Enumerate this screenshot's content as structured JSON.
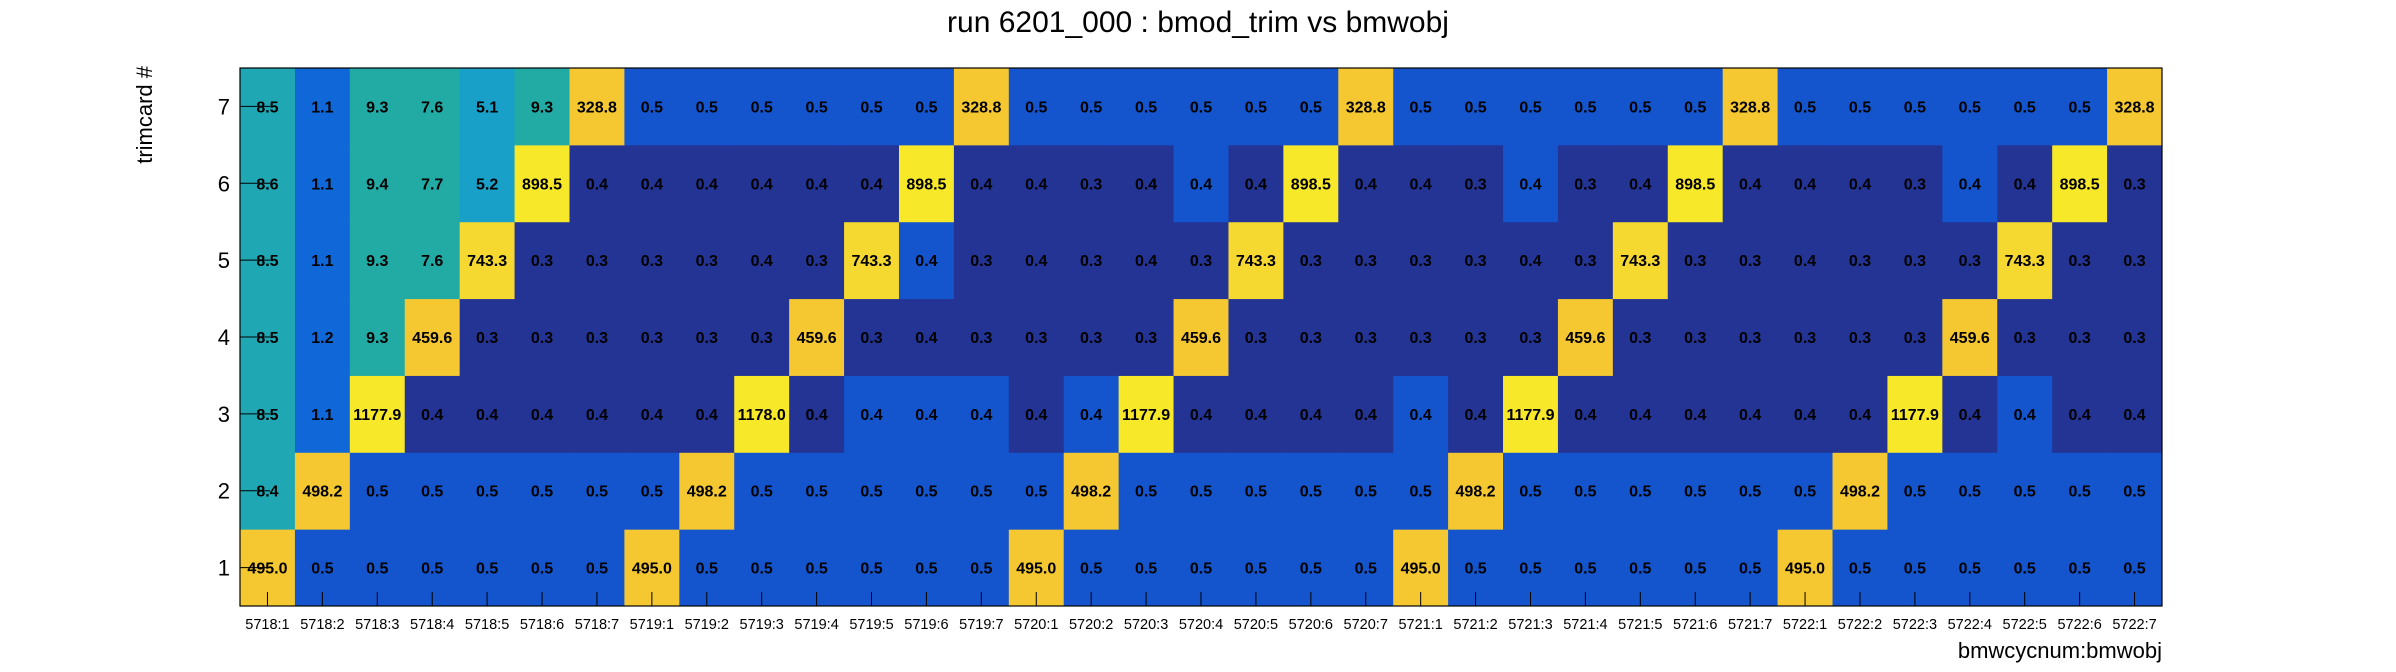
{
  "chart_data": {
    "type": "heatmap",
    "title": "run 6201_000 : bmod_trim vs bmwobj",
    "xlabel": "bmwcycnum:bmwobj",
    "ylabel": "trimcard #",
    "x": [
      "5718:1",
      "5718:2",
      "5718:3",
      "5718:4",
      "5718:5",
      "5718:6",
      "5718:7",
      "5719:1",
      "5719:2",
      "5719:3",
      "5719:4",
      "5719:5",
      "5719:6",
      "5719:7",
      "5720:1",
      "5720:2",
      "5720:3",
      "5720:4",
      "5720:5",
      "5720:6",
      "5720:7",
      "5721:1",
      "5721:2",
      "5721:3",
      "5721:4",
      "5721:5",
      "5721:6",
      "5721:7",
      "5722:1",
      "5722:2",
      "5722:3",
      "5722:4",
      "5722:5",
      "5722:6",
      "5722:7"
    ],
    "y": [
      "1",
      "2",
      "3",
      "4",
      "5",
      "6",
      "7"
    ],
    "values": [
      [
        "495.0",
        "0.5",
        "0.5",
        "0.5",
        "0.5",
        "0.5",
        "0.5",
        "495.0",
        "0.5",
        "0.5",
        "0.5",
        "0.5",
        "0.5",
        "0.5",
        "495.0",
        "0.5",
        "0.5",
        "0.5",
        "0.5",
        "0.5",
        "0.5",
        "495.0",
        "0.5",
        "0.5",
        "0.5",
        "0.5",
        "0.5",
        "0.5",
        "495.0",
        "0.5",
        "0.5",
        "0.5",
        "0.5",
        "0.5",
        "0.5"
      ],
      [
        "8.4",
        "498.2",
        "0.5",
        "0.5",
        "0.5",
        "0.5",
        "0.5",
        "0.5",
        "498.2",
        "0.5",
        "0.5",
        "0.5",
        "0.5",
        "0.5",
        "0.5",
        "498.2",
        "0.5",
        "0.5",
        "0.5",
        "0.5",
        "0.5",
        "0.5",
        "498.2",
        "0.5",
        "0.5",
        "0.5",
        "0.5",
        "0.5",
        "0.5",
        "498.2",
        "0.5",
        "0.5",
        "0.5",
        "0.5",
        "0.5"
      ],
      [
        "8.5",
        "1.1",
        "1177.9",
        "0.4",
        "0.4",
        "0.4",
        "0.4",
        "0.4",
        "0.4",
        "1178.0",
        "0.4",
        "0.4",
        "0.4",
        "0.4",
        "0.4",
        "0.4",
        "1177.9",
        "0.4",
        "0.4",
        "0.4",
        "0.4",
        "0.4",
        "0.4",
        "1177.9",
        "0.4",
        "0.4",
        "0.4",
        "0.4",
        "0.4",
        "0.4",
        "1177.9",
        "0.4",
        "0.4",
        "0.4",
        "0.4"
      ],
      [
        "8.5",
        "1.2",
        "9.3",
        "459.6",
        "0.3",
        "0.3",
        "0.3",
        "0.3",
        "0.3",
        "0.3",
        "459.6",
        "0.3",
        "0.4",
        "0.3",
        "0.3",
        "0.3",
        "0.3",
        "459.6",
        "0.3",
        "0.3",
        "0.3",
        "0.3",
        "0.3",
        "0.3",
        "459.6",
        "0.3",
        "0.3",
        "0.3",
        "0.3",
        "0.3",
        "0.3",
        "459.6",
        "0.3",
        "0.3",
        "0.3"
      ],
      [
        "8.5",
        "1.1",
        "9.3",
        "7.6",
        "743.3",
        "0.3",
        "0.3",
        "0.3",
        "0.3",
        "0.4",
        "0.3",
        "743.3",
        "0.4",
        "0.3",
        "0.4",
        "0.3",
        "0.4",
        "0.3",
        "743.3",
        "0.3",
        "0.3",
        "0.3",
        "0.3",
        "0.4",
        "0.3",
        "743.3",
        "0.3",
        "0.3",
        "0.4",
        "0.3",
        "0.3",
        "0.3",
        "743.3",
        "0.3",
        "0.3"
      ],
      [
        "8.6",
        "1.1",
        "9.4",
        "7.7",
        "5.2",
        "898.5",
        "0.4",
        "0.4",
        "0.4",
        "0.4",
        "0.4",
        "0.4",
        "898.5",
        "0.4",
        "0.4",
        "0.3",
        "0.4",
        "0.4",
        "0.4",
        "898.5",
        "0.4",
        "0.4",
        "0.3",
        "0.4",
        "0.3",
        "0.4",
        "898.5",
        "0.4",
        "0.4",
        "0.4",
        "0.3",
        "0.4",
        "0.4",
        "898.5",
        "0.3"
      ],
      [
        "8.5",
        "1.1",
        "9.3",
        "7.6",
        "5.1",
        "9.3",
        "328.8",
        "0.5",
        "0.5",
        "0.5",
        "0.5",
        "0.5",
        "0.5",
        "328.8",
        "0.5",
        "0.5",
        "0.5",
        "0.5",
        "0.5",
        "0.5",
        "328.8",
        "0.5",
        "0.5",
        "0.5",
        "0.5",
        "0.5",
        "0.5",
        "328.8",
        "0.5",
        "0.5",
        "0.5",
        "0.5",
        "0.5",
        "0.5",
        "328.8"
      ]
    ],
    "cell_colors": [
      [
        "#f5c832",
        "#1454cc",
        "#1454cc",
        "#1454cc",
        "#1454cc",
        "#1454cc",
        "#1454cc",
        "#f5c832",
        "#1454cc",
        "#1454cc",
        "#1454cc",
        "#1454cc",
        "#1454cc",
        "#1454cc",
        "#f5c832",
        "#1454cc",
        "#1454cc",
        "#1454cc",
        "#1454cc",
        "#1454cc",
        "#1454cc",
        "#f5c832",
        "#1454cc",
        "#1454cc",
        "#1454cc",
        "#1454cc",
        "#1454cc",
        "#1454cc",
        "#f5c832",
        "#1454cc",
        "#1454cc",
        "#1454cc",
        "#1454cc",
        "#1454cc",
        "#1454cc"
      ],
      [
        "#1fa8b4",
        "#f5c832",
        "#1454cc",
        "#1454cc",
        "#1454cc",
        "#1454cc",
        "#1454cc",
        "#1454cc",
        "#f5c832",
        "#1454cc",
        "#1454cc",
        "#1454cc",
        "#1454cc",
        "#1454cc",
        "#1454cc",
        "#f5c832",
        "#1454cc",
        "#1454cc",
        "#1454cc",
        "#1454cc",
        "#1454cc",
        "#1454cc",
        "#f5c832",
        "#1454cc",
        "#1454cc",
        "#1454cc",
        "#1454cc",
        "#1454cc",
        "#1454cc",
        "#f5c832",
        "#1454cc",
        "#1454cc",
        "#1454cc",
        "#1454cc",
        "#1454cc"
      ],
      [
        "#1fa8b4",
        "#1068d8",
        "#f8e82a",
        "#243494",
        "#243494",
        "#243494",
        "#243494",
        "#243494",
        "#243494",
        "#f8e82a",
        "#243494",
        "#1454cc",
        "#1454cc",
        "#1454cc",
        "#243494",
        "#1454cc",
        "#f8e82a",
        "#243494",
        "#243494",
        "#243494",
        "#243494",
        "#1454cc",
        "#243494",
        "#f8e82a",
        "#243494",
        "#243494",
        "#243494",
        "#243494",
        "#243494",
        "#243494",
        "#f8e82a",
        "#243494",
        "#1454cc",
        "#243494",
        "#243494"
      ],
      [
        "#1fa8b4",
        "#1068d8",
        "#22aaa4",
        "#f5c832",
        "#243494",
        "#243494",
        "#243494",
        "#243494",
        "#243494",
        "#243494",
        "#f5c832",
        "#243494",
        "#243494",
        "#243494",
        "#243494",
        "#243494",
        "#243494",
        "#f5c832",
        "#243494",
        "#243494",
        "#243494",
        "#243494",
        "#243494",
        "#243494",
        "#f5c832",
        "#243494",
        "#243494",
        "#243494",
        "#243494",
        "#243494",
        "#243494",
        "#f5c832",
        "#243494",
        "#243494",
        "#243494"
      ],
      [
        "#1fa8b4",
        "#1068d8",
        "#22aaa4",
        "#22aaa4",
        "#f5d830",
        "#243494",
        "#243494",
        "#243494",
        "#243494",
        "#243494",
        "#243494",
        "#f5d830",
        "#1454cc",
        "#243494",
        "#243494",
        "#243494",
        "#243494",
        "#243494",
        "#f5d830",
        "#243494",
        "#243494",
        "#243494",
        "#243494",
        "#243494",
        "#243494",
        "#f5d830",
        "#243494",
        "#243494",
        "#243494",
        "#243494",
        "#243494",
        "#243494",
        "#f5d830",
        "#243494",
        "#243494"
      ],
      [
        "#1fa8b4",
        "#1068d8",
        "#22aaa4",
        "#22aaa4",
        "#18a0c8",
        "#f8e82a",
        "#243494",
        "#243494",
        "#243494",
        "#243494",
        "#243494",
        "#243494",
        "#f8e82a",
        "#243494",
        "#243494",
        "#243494",
        "#243494",
        "#1454cc",
        "#243494",
        "#f8e82a",
        "#243494",
        "#243494",
        "#243494",
        "#1454cc",
        "#243494",
        "#243494",
        "#f8e82a",
        "#243494",
        "#243494",
        "#243494",
        "#243494",
        "#1454cc",
        "#243494",
        "#f8e82a",
        "#243494"
      ],
      [
        "#1fa8b4",
        "#1068d8",
        "#22aaa4",
        "#22aaa4",
        "#18a0c8",
        "#22aaa4",
        "#f5c832",
        "#1454cc",
        "#1454cc",
        "#1454cc",
        "#1454cc",
        "#1454cc",
        "#1454cc",
        "#f5c832",
        "#1454cc",
        "#1454cc",
        "#1454cc",
        "#1454cc",
        "#1454cc",
        "#1454cc",
        "#f5c832",
        "#1454cc",
        "#1454cc",
        "#1454cc",
        "#1454cc",
        "#1454cc",
        "#1454cc",
        "#f5c832",
        "#1454cc",
        "#1454cc",
        "#1454cc",
        "#1454cc",
        "#1454cc",
        "#1454cc",
        "#f5c832"
      ]
    ]
  }
}
